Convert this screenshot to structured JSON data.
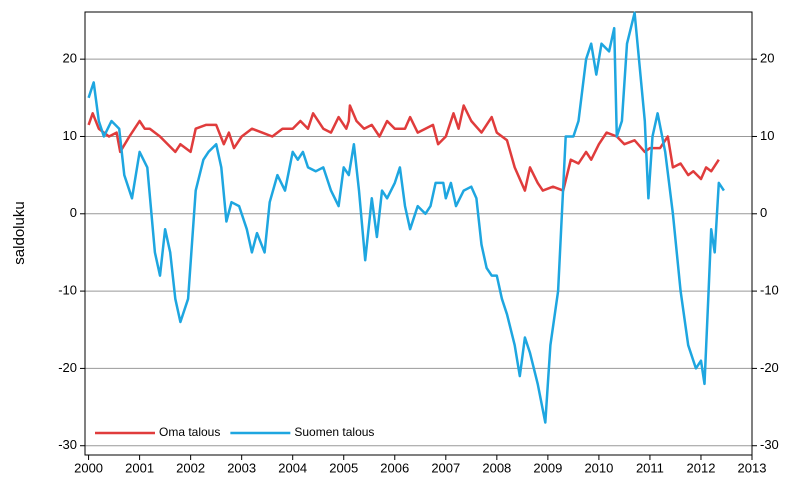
{
  "chart_data": {
    "type": "line",
    "ylabel": "saldoluku",
    "grid": true,
    "legend": "lower left",
    "xlim": [
      1999.93,
      2013
    ],
    "xticks": [
      2000,
      2001,
      2002,
      2003,
      2004,
      2005,
      2006,
      2007,
      2008,
      2009,
      2010,
      2011,
      2012,
      2013
    ],
    "ylim": [
      -31.2,
      26.1
    ],
    "yticks": [
      -30,
      -20,
      -10,
      0,
      10,
      20
    ],
    "y2lim": [
      -31.2,
      26.1
    ],
    "y2ticks": [
      -30,
      -20,
      -10,
      0,
      10,
      20
    ],
    "series": [
      {
        "name": "Oma talous",
        "color": "#e03c3c",
        "x": [
          2000.0,
          2000.08,
          2000.2,
          2000.4,
          2000.55,
          2000.62,
          2000.8,
          2001.0,
          2001.1,
          2001.2,
          2001.4,
          2001.55,
          2001.7,
          2001.8,
          2002.0,
          2002.1,
          2002.3,
          2002.5,
          2002.65,
          2002.75,
          2002.85,
          2003.0,
          2003.2,
          2003.4,
          2003.6,
          2003.8,
          2004.0,
          2004.15,
          2004.3,
          2004.4,
          2004.6,
          2004.75,
          2004.9,
          2005.05,
          2005.1,
          2005.12,
          2005.25,
          2005.4,
          2005.55,
          2005.7,
          2005.85,
          2006.0,
          2006.2,
          2006.3,
          2006.45,
          2006.6,
          2006.75,
          2006.85,
          2007.0,
          2007.15,
          2007.25,
          2007.35,
          2007.5,
          2007.7,
          2007.9,
          2008.0,
          2008.2,
          2008.35,
          2008.55,
          2008.65,
          2008.8,
          2008.9,
          2009.1,
          2009.3,
          2009.45,
          2009.6,
          2009.75,
          2009.85,
          2010.0,
          2010.15,
          2010.35,
          2010.5,
          2010.7,
          2010.9,
          2011.0,
          2011.2,
          2011.35,
          2011.45,
          2011.6,
          2011.75,
          2011.85,
          2012.0,
          2012.1,
          2012.2,
          2012.35
        ],
        "values": [
          11.5,
          13,
          11,
          10,
          10.5,
          8,
          10,
          12,
          11,
          11,
          10,
          9,
          8,
          9,
          8,
          11,
          11.5,
          11.5,
          9,
          10.5,
          8.5,
          10,
          11,
          10.5,
          10,
          11,
          11,
          12,
          11,
          13,
          11,
          10.5,
          12.5,
          11,
          12,
          14,
          12,
          11,
          11.5,
          10,
          12,
          11,
          11,
          12.5,
          10.5,
          11,
          11.5,
          9,
          10,
          13,
          11,
          14,
          12,
          10.5,
          12.5,
          10.5,
          9.5,
          6,
          3,
          6,
          4,
          3,
          3.5,
          3,
          7,
          6.5,
          8,
          7,
          9,
          10.5,
          10,
          9,
          9.5,
          8,
          8.5,
          8.5,
          10,
          6,
          6.5,
          5,
          5.5,
          4.5,
          6,
          5.5,
          7
        ]
      },
      {
        "name": "Suomen talous",
        "color": "#1ea6e0",
        "x": [
          2000.0,
          2000.1,
          2000.2,
          2000.3,
          2000.45,
          2000.6,
          2000.7,
          2000.85,
          2001.0,
          2001.15,
          2001.3,
          2001.4,
          2001.5,
          2001.6,
          2001.7,
          2001.8,
          2001.95,
          2002.1,
          2002.25,
          2002.35,
          2002.5,
          2002.6,
          2002.7,
          2002.8,
          2002.95,
          2003.1,
          2003.2,
          2003.3,
          2003.45,
          2003.55,
          2003.7,
          2003.85,
          2004.0,
          2004.1,
          2004.2,
          2004.3,
          2004.45,
          2004.6,
          2004.75,
          2004.9,
          2005.0,
          2005.1,
          2005.2,
          2005.3,
          2005.42,
          2005.55,
          2005.65,
          2005.75,
          2005.85,
          2006.0,
          2006.1,
          2006.2,
          2006.3,
          2006.45,
          2006.6,
          2006.7,
          2006.8,
          2006.95,
          2007.0,
          2007.1,
          2007.2,
          2007.35,
          2007.5,
          2007.6,
          2007.7,
          2007.8,
          2007.9,
          2008.0,
          2008.1,
          2008.2,
          2008.35,
          2008.45,
          2008.55,
          2008.65,
          2008.8,
          2008.95,
          2009.05,
          2009.2,
          2009.35,
          2009.5,
          2009.6,
          2009.75,
          2009.85,
          2009.95,
          2010.05,
          2010.2,
          2010.3,
          2010.35,
          2010.45,
          2010.55,
          2010.7,
          2010.8,
          2010.9,
          2010.97,
          2011.05,
          2011.15,
          2011.3,
          2011.45,
          2011.6,
          2011.75,
          2011.9,
          2012.0,
          2012.07,
          2012.15,
          2012.2,
          2012.27,
          2012.35,
          2012.45
        ],
        "values": [
          15,
          17,
          12,
          10,
          12,
          11,
          5,
          2,
          8,
          6,
          -5,
          -8,
          -2,
          -5,
          -11,
          -14,
          -11,
          3,
          7,
          8,
          9,
          6,
          -1,
          1.5,
          1,
          -2,
          -5,
          -2.5,
          -5,
          1.5,
          5,
          3,
          8,
          7,
          8,
          6,
          5.5,
          6,
          3,
          1,
          6,
          5,
          9,
          3,
          -6,
          2,
          -3,
          3,
          2,
          4,
          6,
          1,
          -2,
          1,
          0,
          1,
          4,
          4,
          2,
          4,
          1,
          3,
          3.5,
          2,
          -4,
          -7,
          -8,
          -8,
          -11,
          -13,
          -17,
          -21,
          -16,
          -18,
          -22,
          -27,
          -17,
          -10,
          10,
          10,
          12,
          20,
          22,
          18,
          22,
          21,
          24,
          10,
          12,
          22,
          26,
          19,
          12,
          2,
          10,
          13,
          8,
          0,
          -10,
          -17,
          -20,
          -19,
          -22,
          -10,
          -2,
          -5,
          4,
          3
        ]
      }
    ]
  }
}
